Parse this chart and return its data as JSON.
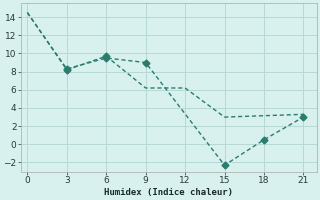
{
  "line1_x": [
    0,
    3,
    6,
    9,
    12,
    15,
    21
  ],
  "line1_y": [
    14.5,
    8.2,
    9.7,
    6.2,
    6.2,
    3.0,
    3.3
  ],
  "line2_x": [
    0,
    3,
    6,
    9,
    15,
    18,
    21
  ],
  "line2_y": [
    14.5,
    8.3,
    9.5,
    9.0,
    -2.3,
    0.5,
    3.0
  ],
  "color": "#2a7d6e",
  "background_color": "#d8f0ee",
  "grid_color": "#b8d8d5",
  "xlabel": "Humidex (Indice chaleur)",
  "xlim": [
    -0.5,
    22
  ],
  "ylim": [
    -3,
    15.5
  ],
  "xticks": [
    0,
    3,
    6,
    9,
    12,
    15,
    18,
    21
  ],
  "yticks": [
    -2,
    0,
    2,
    4,
    6,
    8,
    10,
    12,
    14
  ],
  "markersize": 3.5,
  "linewidth": 1.0
}
